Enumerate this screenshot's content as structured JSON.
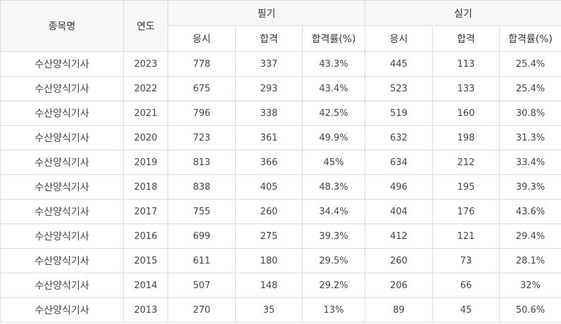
{
  "header": {
    "item_name": "종목명",
    "year": "연도",
    "written": "필기",
    "practical": "실기",
    "sub": {
      "applicants": "응시",
      "passed": "합격",
      "pass_rate": "합격률(%)"
    }
  },
  "rows": [
    {
      "name": "수산양식기사",
      "year": "2023",
      "w_app": "778",
      "w_pass": "337",
      "w_rate": "43.3%",
      "p_app": "445",
      "p_pass": "113",
      "p_rate": "25.4%"
    },
    {
      "name": "수산양식기사",
      "year": "2022",
      "w_app": "675",
      "w_pass": "293",
      "w_rate": "43.4%",
      "p_app": "523",
      "p_pass": "133",
      "p_rate": "25.4%"
    },
    {
      "name": "수산양식기사",
      "year": "2021",
      "w_app": "796",
      "w_pass": "338",
      "w_rate": "42.5%",
      "p_app": "519",
      "p_pass": "160",
      "p_rate": "30.8%"
    },
    {
      "name": "수산양식기사",
      "year": "2020",
      "w_app": "723",
      "w_pass": "361",
      "w_rate": "49.9%",
      "p_app": "632",
      "p_pass": "198",
      "p_rate": "31.3%"
    },
    {
      "name": "수산양식기사",
      "year": "2019",
      "w_app": "813",
      "w_pass": "366",
      "w_rate": "45%",
      "p_app": "634",
      "p_pass": "212",
      "p_rate": "33.4%"
    },
    {
      "name": "수산양식기사",
      "year": "2018",
      "w_app": "838",
      "w_pass": "405",
      "w_rate": "48.3%",
      "p_app": "496",
      "p_pass": "195",
      "p_rate": "39.3%"
    },
    {
      "name": "수산양식기사",
      "year": "2017",
      "w_app": "755",
      "w_pass": "260",
      "w_rate": "34.4%",
      "p_app": "404",
      "p_pass": "176",
      "p_rate": "43.6%"
    },
    {
      "name": "수산양식기사",
      "year": "2016",
      "w_app": "699",
      "w_pass": "275",
      "w_rate": "39.3%",
      "p_app": "412",
      "p_pass": "121",
      "p_rate": "29.4%"
    },
    {
      "name": "수산양식기사",
      "year": "2015",
      "w_app": "611",
      "w_pass": "180",
      "w_rate": "29.5%",
      "p_app": "260",
      "p_pass": "73",
      "p_rate": "28.1%"
    },
    {
      "name": "수산양식기사",
      "year": "2014",
      "w_app": "507",
      "w_pass": "148",
      "w_rate": "29.2%",
      "p_app": "206",
      "p_pass": "66",
      "p_rate": "32%"
    },
    {
      "name": "수산양식기사",
      "year": "2013",
      "w_app": "270",
      "w_pass": "35",
      "w_rate": "13%",
      "p_app": "89",
      "p_pass": "45",
      "p_rate": "50.6%"
    }
  ]
}
